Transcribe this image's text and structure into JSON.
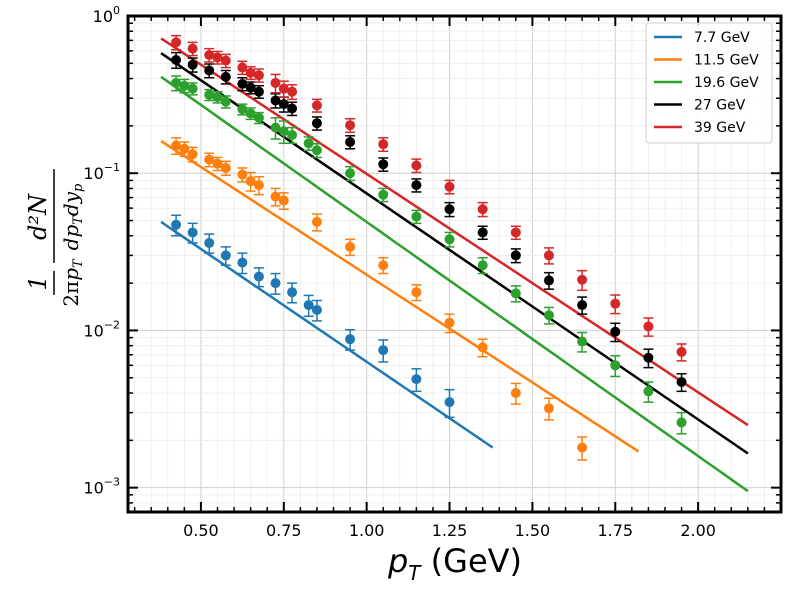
{
  "chart_data": {
    "type": "scatter",
    "title": "",
    "xlabel": "p_T (GeV)",
    "xlabel_main": "p",
    "xlabel_sub": "T",
    "xlabel_unit": " (GeV)",
    "ylabel": "1/(2π p_T) d²N/(dp_T dy_p)",
    "ylabel_parts": {
      "one": "1",
      "numerator": "d²N",
      "den_2pi": "2π",
      "den_p": "p",
      "den_T": "T",
      "den_dp": "dp",
      "den_T2": "T",
      "den_dy": "dy",
      "den_p2": "p"
    },
    "xlim": [
      0.28,
      2.25
    ],
    "ylim": [
      0.0007,
      1.0
    ],
    "yscale": "log",
    "grid": true,
    "legend_position": "top-right",
    "x_ticks": [
      {
        "value": 0.5,
        "label": "0.50"
      },
      {
        "value": 0.75,
        "label": "0.75"
      },
      {
        "value": 1.0,
        "label": "1.00"
      },
      {
        "value": 1.25,
        "label": "1.25"
      },
      {
        "value": 1.5,
        "label": "1.50"
      },
      {
        "value": 1.75,
        "label": "1.75"
      },
      {
        "value": 2.0,
        "label": "2.00"
      }
    ],
    "y_ticks": [
      {
        "value": 0.001,
        "base": "10",
        "exp": "−3"
      },
      {
        "value": 0.01,
        "base": "10",
        "exp": "−2"
      },
      {
        "value": 0.1,
        "base": "10",
        "exp": "−1"
      },
      {
        "value": 1.0,
        "base": "10",
        "exp": "0"
      }
    ],
    "series": [
      {
        "name": "7.7 GeV",
        "color": "#1f77b4",
        "fit": {
          "x": [
            0.38,
            1.38
          ],
          "y": [
            0.049,
            0.0018
          ]
        },
        "points": [
          {
            "x": 0.425,
            "y": 0.047,
            "err": 0.007
          },
          {
            "x": 0.475,
            "y": 0.042,
            "err": 0.006
          },
          {
            "x": 0.525,
            "y": 0.036,
            "err": 0.005
          },
          {
            "x": 0.575,
            "y": 0.03,
            "err": 0.004
          },
          {
            "x": 0.625,
            "y": 0.027,
            "err": 0.004
          },
          {
            "x": 0.675,
            "y": 0.022,
            "err": 0.003
          },
          {
            "x": 0.725,
            "y": 0.02,
            "err": 0.003
          },
          {
            "x": 0.775,
            "y": 0.0175,
            "err": 0.0025
          },
          {
            "x": 0.825,
            "y": 0.0145,
            "err": 0.0022
          },
          {
            "x": 0.85,
            "y": 0.0135,
            "err": 0.002
          },
          {
            "x": 0.95,
            "y": 0.0088,
            "err": 0.0013
          },
          {
            "x": 1.05,
            "y": 0.0075,
            "err": 0.0012
          },
          {
            "x": 1.15,
            "y": 0.0049,
            "err": 0.0008
          },
          {
            "x": 1.25,
            "y": 0.0035,
            "err": 0.0007
          }
        ]
      },
      {
        "name": "11.5 GeV",
        "color": "#ff7f0e",
        "fit": {
          "x": [
            0.38,
            1.82
          ],
          "y": [
            0.16,
            0.0017
          ]
        },
        "points": [
          {
            "x": 0.425,
            "y": 0.15,
            "err": 0.018
          },
          {
            "x": 0.45,
            "y": 0.143,
            "err": 0.015
          },
          {
            "x": 0.475,
            "y": 0.132,
            "err": 0.014
          },
          {
            "x": 0.525,
            "y": 0.122,
            "err": 0.012
          },
          {
            "x": 0.55,
            "y": 0.115,
            "err": 0.011
          },
          {
            "x": 0.575,
            "y": 0.108,
            "err": 0.011
          },
          {
            "x": 0.625,
            "y": 0.098,
            "err": 0.01
          },
          {
            "x": 0.65,
            "y": 0.089,
            "err": 0.012
          },
          {
            "x": 0.675,
            "y": 0.084,
            "err": 0.011
          },
          {
            "x": 0.725,
            "y": 0.071,
            "err": 0.009
          },
          {
            "x": 0.75,
            "y": 0.067,
            "err": 0.008
          },
          {
            "x": 0.85,
            "y": 0.049,
            "err": 0.006
          },
          {
            "x": 0.95,
            "y": 0.034,
            "err": 0.004
          },
          {
            "x": 1.05,
            "y": 0.026,
            "err": 0.003
          },
          {
            "x": 1.15,
            "y": 0.0175,
            "err": 0.002
          },
          {
            "x": 1.25,
            "y": 0.0112,
            "err": 0.0015
          },
          {
            "x": 1.35,
            "y": 0.0078,
            "err": 0.001
          },
          {
            "x": 1.45,
            "y": 0.004,
            "err": 0.0006
          },
          {
            "x": 1.55,
            "y": 0.0032,
            "err": 0.0005
          },
          {
            "x": 1.65,
            "y": 0.0018,
            "err": 0.0003
          }
        ]
      },
      {
        "name": "19.6 GeV",
        "color": "#2ca02c",
        "fit": {
          "x": [
            0.38,
            2.15
          ],
          "y": [
            0.41,
            0.00095
          ]
        },
        "points": [
          {
            "x": 0.425,
            "y": 0.375,
            "err": 0.04
          },
          {
            "x": 0.45,
            "y": 0.36,
            "err": 0.035
          },
          {
            "x": 0.475,
            "y": 0.345,
            "err": 0.03
          },
          {
            "x": 0.525,
            "y": 0.315,
            "err": 0.025
          },
          {
            "x": 0.55,
            "y": 0.305,
            "err": 0.025
          },
          {
            "x": 0.575,
            "y": 0.285,
            "err": 0.025
          },
          {
            "x": 0.625,
            "y": 0.255,
            "err": 0.02
          },
          {
            "x": 0.65,
            "y": 0.24,
            "err": 0.02
          },
          {
            "x": 0.675,
            "y": 0.225,
            "err": 0.018
          },
          {
            "x": 0.725,
            "y": 0.195,
            "err": 0.03
          },
          {
            "x": 0.75,
            "y": 0.185,
            "err": 0.03
          },
          {
            "x": 0.775,
            "y": 0.175,
            "err": 0.02
          },
          {
            "x": 0.825,
            "y": 0.155,
            "err": 0.015
          },
          {
            "x": 0.85,
            "y": 0.14,
            "err": 0.014
          },
          {
            "x": 0.95,
            "y": 0.1,
            "err": 0.01
          },
          {
            "x": 1.05,
            "y": 0.073,
            "err": 0.007
          },
          {
            "x": 1.15,
            "y": 0.053,
            "err": 0.005
          },
          {
            "x": 1.25,
            "y": 0.038,
            "err": 0.004
          },
          {
            "x": 1.35,
            "y": 0.026,
            "err": 0.003
          },
          {
            "x": 1.45,
            "y": 0.0172,
            "err": 0.002
          },
          {
            "x": 1.55,
            "y": 0.0125,
            "err": 0.0015
          },
          {
            "x": 1.65,
            "y": 0.0085,
            "err": 0.0012
          },
          {
            "x": 1.75,
            "y": 0.006,
            "err": 0.0009
          },
          {
            "x": 1.85,
            "y": 0.0041,
            "err": 0.0006
          },
          {
            "x": 1.95,
            "y": 0.0026,
            "err": 0.0004
          }
        ]
      },
      {
        "name": "27 GeV",
        "color": "#000000",
        "fit": {
          "x": [
            0.38,
            2.15
          ],
          "y": [
            0.58,
            0.00165
          ]
        },
        "points": [
          {
            "x": 0.425,
            "y": 0.525,
            "err": 0.06
          },
          {
            "x": 0.475,
            "y": 0.49,
            "err": 0.05
          },
          {
            "x": 0.525,
            "y": 0.45,
            "err": 0.045
          },
          {
            "x": 0.575,
            "y": 0.41,
            "err": 0.04
          },
          {
            "x": 0.625,
            "y": 0.37,
            "err": 0.035
          },
          {
            "x": 0.65,
            "y": 0.35,
            "err": 0.03
          },
          {
            "x": 0.675,
            "y": 0.33,
            "err": 0.03
          },
          {
            "x": 0.725,
            "y": 0.29,
            "err": 0.03
          },
          {
            "x": 0.75,
            "y": 0.275,
            "err": 0.03
          },
          {
            "x": 0.775,
            "y": 0.258,
            "err": 0.025
          },
          {
            "x": 0.85,
            "y": 0.208,
            "err": 0.02
          },
          {
            "x": 0.95,
            "y": 0.158,
            "err": 0.015
          },
          {
            "x": 1.05,
            "y": 0.114,
            "err": 0.011
          },
          {
            "x": 1.15,
            "y": 0.084,
            "err": 0.008
          },
          {
            "x": 1.25,
            "y": 0.059,
            "err": 0.006
          },
          {
            "x": 1.35,
            "y": 0.042,
            "err": 0.004
          },
          {
            "x": 1.45,
            "y": 0.03,
            "err": 0.003
          },
          {
            "x": 1.55,
            "y": 0.0208,
            "err": 0.0025
          },
          {
            "x": 1.65,
            "y": 0.0145,
            "err": 0.0018
          },
          {
            "x": 1.75,
            "y": 0.0098,
            "err": 0.0013
          },
          {
            "x": 1.85,
            "y": 0.0067,
            "err": 0.0009
          },
          {
            "x": 1.95,
            "y": 0.0047,
            "err": 0.0006
          }
        ]
      },
      {
        "name": "39 GeV",
        "color": "#d62728",
        "fit": {
          "x": [
            0.38,
            2.15
          ],
          "y": [
            0.72,
            0.0025
          ]
        },
        "points": [
          {
            "x": 0.425,
            "y": 0.68,
            "err": 0.07
          },
          {
            "x": 0.475,
            "y": 0.62,
            "err": 0.06
          },
          {
            "x": 0.525,
            "y": 0.565,
            "err": 0.055
          },
          {
            "x": 0.55,
            "y": 0.545,
            "err": 0.05
          },
          {
            "x": 0.575,
            "y": 0.52,
            "err": 0.05
          },
          {
            "x": 0.625,
            "y": 0.47,
            "err": 0.045
          },
          {
            "x": 0.65,
            "y": 0.435,
            "err": 0.04
          },
          {
            "x": 0.675,
            "y": 0.42,
            "err": 0.04
          },
          {
            "x": 0.725,
            "y": 0.375,
            "err": 0.05
          },
          {
            "x": 0.75,
            "y": 0.345,
            "err": 0.04
          },
          {
            "x": 0.775,
            "y": 0.33,
            "err": 0.035
          },
          {
            "x": 0.85,
            "y": 0.27,
            "err": 0.025
          },
          {
            "x": 0.95,
            "y": 0.202,
            "err": 0.02
          },
          {
            "x": 1.05,
            "y": 0.153,
            "err": 0.015
          },
          {
            "x": 1.15,
            "y": 0.112,
            "err": 0.011
          },
          {
            "x": 1.25,
            "y": 0.082,
            "err": 0.008
          },
          {
            "x": 1.35,
            "y": 0.059,
            "err": 0.006
          },
          {
            "x": 1.45,
            "y": 0.042,
            "err": 0.004
          },
          {
            "x": 1.55,
            "y": 0.03,
            "err": 0.0035
          },
          {
            "x": 1.65,
            "y": 0.021,
            "err": 0.003
          },
          {
            "x": 1.75,
            "y": 0.0148,
            "err": 0.002
          },
          {
            "x": 1.85,
            "y": 0.0106,
            "err": 0.0014
          },
          {
            "x": 1.95,
            "y": 0.0073,
            "err": 0.0009
          }
        ]
      }
    ]
  }
}
